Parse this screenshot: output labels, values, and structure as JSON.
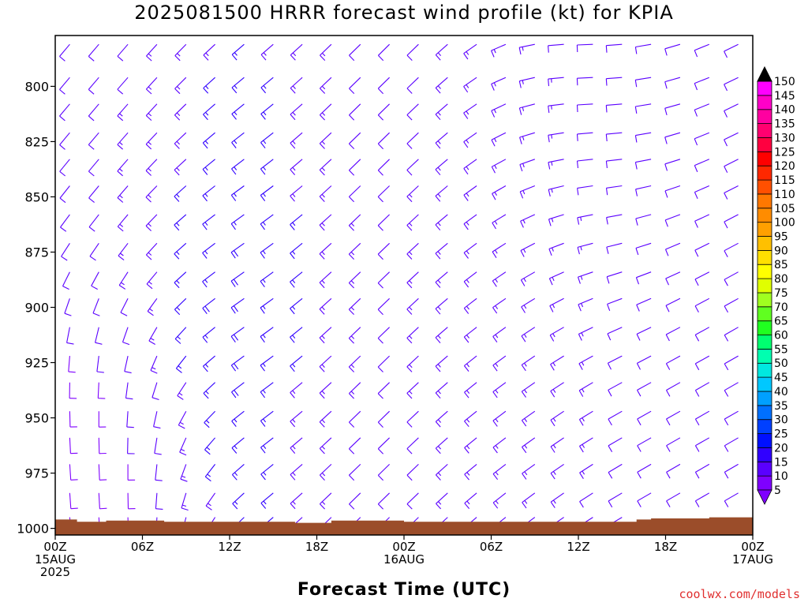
{
  "title": "2025081500 HRRR forecast wind profile (kt) for KPIA",
  "credit": "coolwx.com/models",
  "chart_data": {
    "type": "wind-barb-time-height",
    "title": "2025081500 HRRR forecast wind profile (kt) for KPIA",
    "xlabel": "Forecast Time (UTC)",
    "ylabel": "",
    "ylim": [
      1003,
      777
    ],
    "y_ticks": [
      800,
      825,
      850,
      875,
      900,
      925,
      950,
      975,
      1000
    ],
    "x_range_hours": [
      0,
      48
    ],
    "x_ticks": [
      {
        "hour": 0,
        "label": [
          "00Z",
          "15AUG",
          "2025"
        ]
      },
      {
        "hour": 6,
        "label": [
          "06Z"
        ]
      },
      {
        "hour": 12,
        "label": [
          "12Z"
        ]
      },
      {
        "hour": 18,
        "label": [
          "18Z"
        ]
      },
      {
        "hour": 24,
        "label": [
          "00Z",
          "16AUG"
        ]
      },
      {
        "hour": 30,
        "label": [
          "06Z"
        ]
      },
      {
        "hour": 36,
        "label": [
          "12Z"
        ]
      },
      {
        "hour": 42,
        "label": [
          "18Z"
        ]
      },
      {
        "hour": 48,
        "label": [
          "00Z",
          "17AUG"
        ]
      }
    ],
    "levels_hpa": [
      781,
      796,
      808,
      821,
      833,
      845,
      858,
      871,
      884,
      896,
      909,
      922,
      934,
      947,
      959,
      971,
      984,
      995
    ],
    "forecast_hours": [
      1,
      3,
      5,
      7,
      9,
      11,
      13,
      15,
      17,
      19,
      21,
      23,
      25,
      27,
      29,
      31,
      33,
      35,
      37,
      39,
      41,
      43,
      45,
      47
    ],
    "ground_pressure_hpa": [
      [
        0,
        996
      ],
      [
        1.5,
        996
      ],
      [
        1.5,
        997
      ],
      [
        3.5,
        997
      ],
      [
        3.5,
        996.5
      ],
      [
        7.5,
        996.5
      ],
      [
        7.5,
        997
      ],
      [
        16.5,
        997
      ],
      [
        16.5,
        997.5
      ],
      [
        19,
        997.5
      ],
      [
        19,
        996.5
      ],
      [
        24,
        996.5
      ],
      [
        24,
        997
      ],
      [
        40,
        997
      ],
      [
        40,
        996
      ],
      [
        41,
        996
      ],
      [
        41,
        995.5
      ],
      [
        45,
        995.5
      ],
      [
        45,
        995
      ],
      [
        48,
        995
      ]
    ],
    "ground_color": "#9b4d2a",
    "colorbar": {
      "labels": [
        5,
        10,
        15,
        20,
        25,
        30,
        35,
        40,
        45,
        50,
        55,
        60,
        65,
        70,
        75,
        80,
        85,
        90,
        95,
        100,
        105,
        110,
        115,
        120,
        125,
        130,
        135,
        140,
        145,
        150
      ],
      "colors": [
        "#7f00ff",
        "#5a00ff",
        "#3000ff",
        "#0010ff",
        "#0040ff",
        "#0070ff",
        "#00a0ff",
        "#00c8ff",
        "#00e8e0",
        "#00ffb0",
        "#00ff70",
        "#20ff20",
        "#60ff20",
        "#a0ff20",
        "#e0ff00",
        "#ffff00",
        "#ffe000",
        "#ffc000",
        "#ffa000",
        "#ff8c00",
        "#ff7800",
        "#ff5000",
        "#ff2800",
        "#ff0000",
        "#ff0040",
        "#ff0070",
        "#ff00a0",
        "#ff00c8",
        "#ff00ff"
      ]
    },
    "wind_field": {
      "units": "kt",
      "note_speed_range_kt": [
        5,
        30
      ],
      "direction_regimes": [
        {
          "hours": [
            0,
            8
          ],
          "levels_hpa": [
            900,
            1000
          ],
          "dir_deg": 175,
          "spd_kt": 9
        },
        {
          "hours": [
            0,
            10
          ],
          "levels_hpa": [
            777,
            900
          ],
          "dir_deg": 220,
          "spd_kt": 12
        },
        {
          "hours": [
            8,
            16
          ],
          "levels_hpa": [
            820,
            960
          ],
          "dir_deg": 240,
          "spd_kt": 20
        },
        {
          "hours": [
            16,
            28
          ],
          "levels_hpa": [
            777,
            1000
          ],
          "dir_deg": 225,
          "spd_kt": 12
        },
        {
          "hours": [
            28,
            36
          ],
          "levels_hpa": [
            820,
            960
          ],
          "dir_deg": 235,
          "spd_kt": 15
        },
        {
          "hours": [
            34,
            42
          ],
          "levels_hpa": [
            777,
            880
          ],
          "dir_deg": 275,
          "spd_kt": 12
        },
        {
          "hours": [
            40,
            48
          ],
          "levels_hpa": [
            777,
            1000
          ],
          "dir_deg": 240,
          "spd_kt": 10
        }
      ]
    }
  }
}
